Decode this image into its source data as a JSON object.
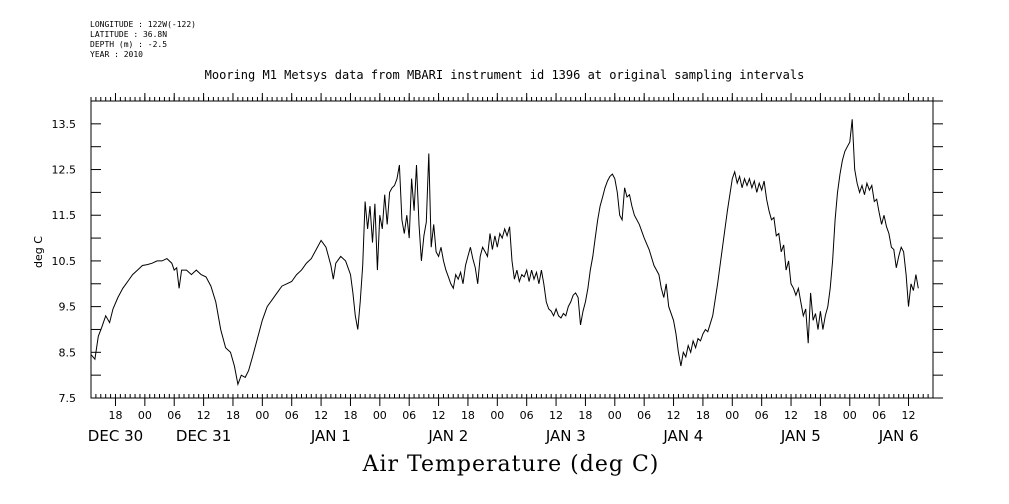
{
  "meta": {
    "longitude": "LONGITUDE : 122W(-122)",
    "latitude": "LATITUDE : 36.8N",
    "depth": "DEPTH (m) : -2.5",
    "year": "YEAR : 2010"
  },
  "chart_data": {
    "type": "line",
    "title": "Mooring M1 Metsys data from MBARI instrument id 1396 at original sampling intervals",
    "xlabel": "Air Temperature (deg C)",
    "ylabel": "deg C",
    "ylim": [
      7.5,
      14.0
    ],
    "yticks": [
      7.5,
      8.5,
      9.5,
      10.5,
      11.5,
      12.5,
      13.5
    ],
    "xlim_hours": [
      -11,
      161
    ],
    "hour_ticks": [
      {
        "h": -6,
        "label": "18"
      },
      {
        "h": 0,
        "label": "00"
      },
      {
        "h": 6,
        "label": "06"
      },
      {
        "h": 12,
        "label": "12"
      },
      {
        "h": 18,
        "label": "18"
      },
      {
        "h": 24,
        "label": "00"
      },
      {
        "h": 30,
        "label": "06"
      },
      {
        "h": 36,
        "label": "12"
      },
      {
        "h": 42,
        "label": "18"
      },
      {
        "h": 48,
        "label": "00"
      },
      {
        "h": 54,
        "label": "06"
      },
      {
        "h": 60,
        "label": "12"
      },
      {
        "h": 66,
        "label": "18"
      },
      {
        "h": 72,
        "label": "00"
      },
      {
        "h": 78,
        "label": "06"
      },
      {
        "h": 84,
        "label": "12"
      },
      {
        "h": 90,
        "label": "18"
      },
      {
        "h": 96,
        "label": "00"
      },
      {
        "h": 102,
        "label": "06"
      },
      {
        "h": 108,
        "label": "12"
      },
      {
        "h": 114,
        "label": "18"
      },
      {
        "h": 120,
        "label": "00"
      },
      {
        "h": 126,
        "label": "06"
      },
      {
        "h": 132,
        "label": "12"
      },
      {
        "h": 138,
        "label": "18"
      },
      {
        "h": 144,
        "label": "00"
      },
      {
        "h": 150,
        "label": "06"
      },
      {
        "h": 156,
        "label": "12"
      }
    ],
    "day_labels": [
      {
        "h": -6,
        "label": "DEC 30"
      },
      {
        "h": 12,
        "label": "DEC 31"
      },
      {
        "h": 38,
        "label": "JAN  1"
      },
      {
        "h": 62,
        "label": "JAN  2"
      },
      {
        "h": 86,
        "label": "JAN  3"
      },
      {
        "h": 110,
        "label": "JAN  4"
      },
      {
        "h": 134,
        "label": "JAN  5"
      },
      {
        "h": 154,
        "label": "JAN  6"
      }
    ],
    "series": [
      {
        "color": "#000000",
        "points": [
          [
            -11.0,
            8.45
          ],
          [
            -10.2,
            8.35
          ],
          [
            -9.5,
            8.85
          ],
          [
            -8.8,
            9.05
          ],
          [
            -8.0,
            9.3
          ],
          [
            -7.2,
            9.15
          ],
          [
            -6.5,
            9.45
          ],
          [
            -5.5,
            9.7
          ],
          [
            -4.5,
            9.9
          ],
          [
            -3.5,
            10.05
          ],
          [
            -2.5,
            10.2
          ],
          [
            -1.5,
            10.3
          ],
          [
            -0.5,
            10.4
          ],
          [
            0.5,
            10.42
          ],
          [
            1.5,
            10.45
          ],
          [
            2.5,
            10.5
          ],
          [
            3.5,
            10.5
          ],
          [
            4.5,
            10.55
          ],
          [
            5.5,
            10.45
          ],
          [
            6.0,
            10.3
          ],
          [
            6.5,
            10.35
          ],
          [
            7.0,
            9.9
          ],
          [
            7.5,
            10.3
          ],
          [
            8.5,
            10.3
          ],
          [
            9.5,
            10.2
          ],
          [
            10.5,
            10.3
          ],
          [
            11.5,
            10.2
          ],
          [
            12.5,
            10.15
          ],
          [
            13.5,
            9.95
          ],
          [
            14.5,
            9.6
          ],
          [
            15.5,
            9.0
          ],
          [
            16.5,
            8.6
          ],
          [
            17.5,
            8.5
          ],
          [
            18.3,
            8.2
          ],
          [
            19.0,
            7.8
          ],
          [
            19.7,
            8.0
          ],
          [
            20.5,
            7.95
          ],
          [
            21.2,
            8.1
          ],
          [
            22.0,
            8.4
          ],
          [
            23.0,
            8.8
          ],
          [
            24.0,
            9.2
          ],
          [
            25.0,
            9.5
          ],
          [
            26.0,
            9.65
          ],
          [
            27.0,
            9.8
          ],
          [
            28.0,
            9.95
          ],
          [
            29.0,
            10.0
          ],
          [
            30.0,
            10.05
          ],
          [
            31.0,
            10.2
          ],
          [
            32.0,
            10.3
          ],
          [
            33.0,
            10.45
          ],
          [
            34.0,
            10.55
          ],
          [
            35.0,
            10.75
          ],
          [
            36.0,
            10.95
          ],
          [
            37.0,
            10.8
          ],
          [
            38.0,
            10.4
          ],
          [
            38.5,
            10.1
          ],
          [
            39.0,
            10.45
          ],
          [
            40.0,
            10.6
          ],
          [
            41.0,
            10.5
          ],
          [
            42.0,
            10.2
          ],
          [
            42.5,
            9.8
          ],
          [
            43.0,
            9.3
          ],
          [
            43.5,
            9.0
          ],
          [
            44.0,
            9.6
          ],
          [
            44.5,
            10.4
          ],
          [
            45.0,
            11.8
          ],
          [
            45.5,
            11.2
          ],
          [
            46.0,
            11.7
          ],
          [
            46.5,
            10.9
          ],
          [
            47.0,
            11.75
          ],
          [
            47.5,
            10.3
          ],
          [
            48.0,
            11.5
          ],
          [
            48.5,
            11.2
          ],
          [
            49.0,
            11.95
          ],
          [
            49.5,
            11.3
          ],
          [
            50.0,
            12.0
          ],
          [
            50.5,
            12.1
          ],
          [
            51.0,
            12.15
          ],
          [
            51.5,
            12.3
          ],
          [
            52.0,
            12.6
          ],
          [
            52.5,
            11.4
          ],
          [
            53.0,
            11.1
          ],
          [
            53.5,
            11.5
          ],
          [
            54.0,
            11.0
          ],
          [
            54.5,
            12.3
          ],
          [
            55.0,
            11.6
          ],
          [
            55.5,
            12.6
          ],
          [
            56.0,
            11.3
          ],
          [
            56.5,
            10.5
          ],
          [
            57.0,
            11.05
          ],
          [
            57.5,
            11.35
          ],
          [
            58.0,
            12.85
          ],
          [
            58.5,
            10.8
          ],
          [
            59.0,
            11.3
          ],
          [
            59.5,
            10.7
          ],
          [
            60.0,
            10.6
          ],
          [
            60.5,
            10.8
          ],
          [
            61.0,
            10.5
          ],
          [
            61.5,
            10.3
          ],
          [
            62.0,
            10.15
          ],
          [
            62.5,
            10.0
          ],
          [
            63.0,
            9.9
          ],
          [
            63.5,
            10.2
          ],
          [
            64.0,
            10.1
          ],
          [
            64.5,
            10.25
          ],
          [
            65.0,
            10.0
          ],
          [
            65.5,
            10.4
          ],
          [
            66.0,
            10.6
          ],
          [
            66.5,
            10.8
          ],
          [
            67.0,
            10.55
          ],
          [
            67.5,
            10.35
          ],
          [
            68.0,
            10.0
          ],
          [
            68.5,
            10.6
          ],
          [
            69.0,
            10.8
          ],
          [
            69.5,
            10.7
          ],
          [
            70.0,
            10.6
          ],
          [
            70.5,
            11.1
          ],
          [
            71.0,
            10.75
          ],
          [
            71.5,
            11.05
          ],
          [
            72.0,
            10.8
          ],
          [
            72.5,
            11.1
          ],
          [
            73.0,
            11.0
          ],
          [
            73.5,
            11.2
          ],
          [
            74.0,
            11.05
          ],
          [
            74.5,
            11.25
          ],
          [
            75.0,
            10.5
          ],
          [
            75.5,
            10.1
          ],
          [
            76.0,
            10.3
          ],
          [
            76.5,
            10.05
          ],
          [
            77.0,
            10.2
          ],
          [
            77.5,
            10.15
          ],
          [
            78.0,
            10.3
          ],
          [
            78.5,
            10.05
          ],
          [
            79.0,
            10.3
          ],
          [
            79.5,
            10.1
          ],
          [
            80.0,
            10.25
          ],
          [
            80.5,
            10.0
          ],
          [
            81.0,
            10.3
          ],
          [
            81.5,
            10.0
          ],
          [
            82.0,
            9.6
          ],
          [
            82.5,
            9.45
          ],
          [
            83.0,
            9.4
          ],
          [
            83.5,
            9.3
          ],
          [
            84.0,
            9.45
          ],
          [
            84.5,
            9.3
          ],
          [
            85.0,
            9.25
          ],
          [
            85.5,
            9.35
          ],
          [
            86.0,
            9.3
          ],
          [
            86.5,
            9.5
          ],
          [
            87.0,
            9.6
          ],
          [
            87.5,
            9.75
          ],
          [
            88.0,
            9.8
          ],
          [
            88.5,
            9.7
          ],
          [
            89.0,
            9.1
          ],
          [
            89.5,
            9.4
          ],
          [
            90.0,
            9.6
          ],
          [
            90.5,
            9.9
          ],
          [
            91.0,
            10.3
          ],
          [
            91.5,
            10.6
          ],
          [
            92.0,
            11.0
          ],
          [
            92.5,
            11.4
          ],
          [
            93.0,
            11.7
          ],
          [
            93.5,
            11.9
          ],
          [
            94.0,
            12.1
          ],
          [
            94.5,
            12.25
          ],
          [
            95.0,
            12.35
          ],
          [
            95.5,
            12.4
          ],
          [
            96.0,
            12.3
          ],
          [
            96.5,
            12.0
          ],
          [
            97.0,
            11.5
          ],
          [
            97.5,
            11.4
          ],
          [
            98.0,
            12.1
          ],
          [
            98.5,
            11.9
          ],
          [
            99.0,
            11.95
          ],
          [
            99.5,
            11.7
          ],
          [
            100.0,
            11.5
          ],
          [
            101.0,
            11.3
          ],
          [
            102.0,
            11.0
          ],
          [
            103.0,
            10.75
          ],
          [
            104.0,
            10.4
          ],
          [
            105.0,
            10.2
          ],
          [
            105.5,
            9.9
          ],
          [
            106.0,
            9.7
          ],
          [
            106.5,
            10.0
          ],
          [
            107.0,
            9.5
          ],
          [
            108.0,
            9.2
          ],
          [
            108.5,
            8.9
          ],
          [
            109.0,
            8.5
          ],
          [
            109.5,
            8.2
          ],
          [
            110.0,
            8.5
          ],
          [
            110.5,
            8.4
          ],
          [
            111.0,
            8.65
          ],
          [
            111.5,
            8.5
          ],
          [
            112.0,
            8.75
          ],
          [
            112.5,
            8.6
          ],
          [
            113.0,
            8.8
          ],
          [
            113.5,
            8.75
          ],
          [
            114.0,
            8.9
          ],
          [
            114.5,
            9.0
          ],
          [
            115.0,
            8.95
          ],
          [
            116.0,
            9.3
          ],
          [
            117.0,
            10.0
          ],
          [
            118.0,
            10.8
          ],
          [
            119.0,
            11.6
          ],
          [
            120.0,
            12.3
          ],
          [
            120.5,
            12.45
          ],
          [
            121.0,
            12.2
          ],
          [
            121.5,
            12.35
          ],
          [
            122.0,
            12.1
          ],
          [
            122.5,
            12.3
          ],
          [
            123.0,
            12.15
          ],
          [
            123.5,
            12.3
          ],
          [
            124.0,
            12.1
          ],
          [
            124.5,
            12.25
          ],
          [
            125.0,
            12.0
          ],
          [
            125.5,
            12.2
          ],
          [
            126.0,
            12.05
          ],
          [
            126.5,
            12.25
          ],
          [
            127.0,
            11.85
          ],
          [
            127.5,
            11.6
          ],
          [
            128.0,
            11.4
          ],
          [
            128.5,
            11.45
          ],
          [
            129.0,
            11.05
          ],
          [
            129.5,
            11.1
          ],
          [
            130.0,
            10.7
          ],
          [
            130.5,
            10.85
          ],
          [
            131.0,
            10.3
          ],
          [
            131.5,
            10.5
          ],
          [
            132.0,
            10.0
          ],
          [
            132.5,
            9.9
          ],
          [
            133.0,
            9.75
          ],
          [
            133.5,
            9.9
          ],
          [
            134.0,
            9.6
          ],
          [
            134.5,
            9.3
          ],
          [
            135.0,
            9.45
          ],
          [
            135.5,
            8.7
          ],
          [
            136.0,
            9.8
          ],
          [
            136.5,
            9.2
          ],
          [
            137.0,
            9.35
          ],
          [
            137.5,
            9.0
          ],
          [
            138.0,
            9.4
          ],
          [
            138.5,
            9.0
          ],
          [
            139.0,
            9.3
          ],
          [
            139.5,
            9.5
          ],
          [
            140.0,
            9.9
          ],
          [
            140.5,
            10.5
          ],
          [
            141.0,
            11.4
          ],
          [
            141.5,
            12.0
          ],
          [
            142.0,
            12.4
          ],
          [
            142.5,
            12.7
          ],
          [
            143.0,
            12.9
          ],
          [
            143.5,
            13.0
          ],
          [
            144.0,
            13.1
          ],
          [
            144.5,
            13.6
          ],
          [
            145.0,
            12.5
          ],
          [
            145.5,
            12.2
          ],
          [
            146.0,
            12.0
          ],
          [
            146.5,
            12.15
          ],
          [
            147.0,
            11.95
          ],
          [
            147.5,
            12.2
          ],
          [
            148.0,
            12.05
          ],
          [
            148.5,
            12.15
          ],
          [
            149.0,
            11.8
          ],
          [
            149.5,
            11.85
          ],
          [
            150.0,
            11.55
          ],
          [
            150.5,
            11.3
          ],
          [
            151.0,
            11.5
          ],
          [
            151.5,
            11.25
          ],
          [
            152.0,
            11.1
          ],
          [
            152.5,
            10.8
          ],
          [
            153.0,
            10.75
          ],
          [
            153.5,
            10.35
          ],
          [
            154.0,
            10.6
          ],
          [
            154.5,
            10.8
          ],
          [
            155.0,
            10.7
          ],
          [
            155.5,
            10.2
          ],
          [
            156.0,
            9.5
          ],
          [
            156.5,
            10.0
          ],
          [
            157.0,
            9.85
          ],
          [
            157.5,
            10.2
          ],
          [
            158.0,
            9.9
          ]
        ]
      }
    ]
  }
}
